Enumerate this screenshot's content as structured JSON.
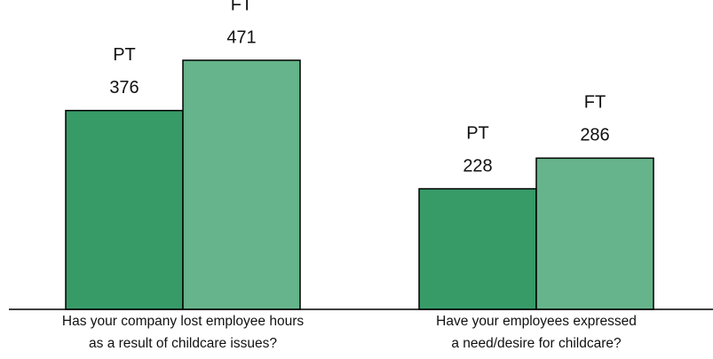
{
  "chart_data": {
    "type": "bar",
    "categories": [
      [
        "Has your company lost employee hours",
        "as a result of childcare issues?"
      ],
      [
        "Have your employees expressed",
        "a need/desire for childcare?"
      ]
    ],
    "series": [
      {
        "name": "PT",
        "color": "#379b68",
        "values": [
          376,
          228
        ]
      },
      {
        "name": "FT",
        "color": "#66b48b",
        "values": [
          471,
          286
        ]
      }
    ],
    "ylim": [
      0,
      585
    ]
  }
}
